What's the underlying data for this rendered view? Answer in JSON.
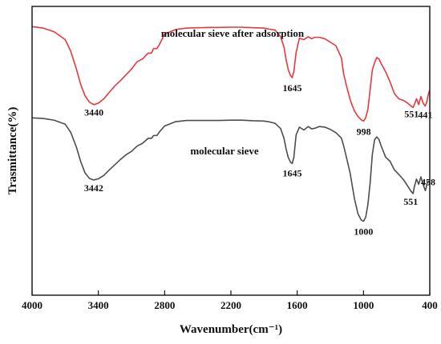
{
  "chart_data": {
    "type": "line",
    "xlabel": "Wavenumber(cm⁻¹)",
    "ylabel": "Trasmittance(%)",
    "xlim": [
      4000,
      400
    ],
    "x_reversed": true,
    "x_ticks": [
      4000,
      3400,
      2800,
      2200,
      1600,
      1000,
      400
    ],
    "y_ticks_shown": false,
    "grid": false,
    "legend": "none",
    "series": [
      {
        "name": "molecular sieve after adsorption",
        "color": "#e8383d",
        "x": [
          4000,
          3900,
          3800,
          3700,
          3650,
          3600,
          3560,
          3520,
          3480,
          3440,
          3400,
          3350,
          3300,
          3250,
          3200,
          3150,
          3100,
          3050,
          3000,
          2950,
          2920,
          2900,
          2870,
          2850,
          2800,
          2700,
          2600,
          2500,
          2400,
          2300,
          2200,
          2100,
          2000,
          1900,
          1850,
          1800,
          1750,
          1720,
          1700,
          1680,
          1660,
          1645,
          1630,
          1610,
          1580,
          1540,
          1500,
          1470,
          1440,
          1400,
          1350,
          1300,
          1250,
          1200,
          1180,
          1150,
          1120,
          1100,
          1080,
          1050,
          1020,
          998,
          980,
          960,
          940,
          920,
          900,
          880,
          860,
          840,
          800,
          760,
          720,
          680,
          640,
          600,
          570,
          551,
          540,
          520,
          500,
          480,
          460,
          441,
          430,
          410,
          400
        ],
        "y": [
          93.0,
          92.5,
          91.2,
          88.5,
          84.5,
          78.5,
          73.0,
          69.0,
          66.8,
          66.0,
          66.5,
          68.0,
          70.3,
          72.5,
          74.3,
          76.3,
          78.3,
          80.8,
          81.8,
          83.8,
          83.8,
          85.4,
          85.4,
          86.6,
          90.4,
          92.0,
          92.5,
          92.6,
          92.7,
          92.7,
          92.8,
          92.8,
          92.6,
          92.5,
          92.1,
          91.8,
          89.5,
          86.0,
          81.5,
          78.0,
          76.0,
          75.3,
          77.5,
          84.0,
          89.0,
          88.5,
          89.5,
          88.8,
          89.3,
          89.3,
          88.8,
          87.6,
          86.4,
          82.2,
          76.7,
          71.9,
          67.7,
          65.5,
          63.7,
          61.9,
          60.7,
          60.3,
          61.5,
          64.4,
          71.1,
          78.0,
          80.5,
          82.3,
          81.8,
          80.2,
          77.4,
          73.9,
          69.8,
          68.0,
          67.5,
          66.5,
          65.5,
          65.0,
          66.0,
          68.0,
          66.0,
          68.8,
          66.5,
          65.5,
          66.5,
          70.0,
          71.0
        ]
      },
      {
        "name": "molecular sieve",
        "color": "#4d4d4d",
        "x": [
          4000,
          3900,
          3800,
          3700,
          3650,
          3600,
          3560,
          3520,
          3480,
          3442,
          3400,
          3350,
          3300,
          3250,
          3200,
          3150,
          3100,
          3050,
          3000,
          2950,
          2920,
          2900,
          2870,
          2850,
          2800,
          2700,
          2600,
          2500,
          2400,
          2300,
          2200,
          2100,
          2000,
          1900,
          1850,
          1800,
          1750,
          1720,
          1700,
          1680,
          1660,
          1645,
          1630,
          1610,
          1580,
          1540,
          1500,
          1470,
          1440,
          1400,
          1350,
          1300,
          1250,
          1200,
          1180,
          1150,
          1120,
          1100,
          1080,
          1050,
          1020,
          1000,
          980,
          960,
          940,
          920,
          900,
          880,
          860,
          840,
          800,
          760,
          720,
          680,
          640,
          600,
          570,
          551,
          540,
          520,
          500,
          480,
          470,
          458,
          440,
          420,
          400
        ],
        "y": [
          61.4,
          61.2,
          60.6,
          59.2,
          56.4,
          51.4,
          46.3,
          42.3,
          40.4,
          39.9,
          40.3,
          41.5,
          43.4,
          45.2,
          47.0,
          48.6,
          49.8,
          51.6,
          52.6,
          54.3,
          54.3,
          55.3,
          55.3,
          56.4,
          58.6,
          60.1,
          60.5,
          60.5,
          60.5,
          60.5,
          60.6,
          60.6,
          60.4,
          60.3,
          60.0,
          59.5,
          57.7,
          54.4,
          50.5,
          47.6,
          46.0,
          45.6,
          47.8,
          55.5,
          58.2,
          57.2,
          58.4,
          57.6,
          57.8,
          58.4,
          58.2,
          57.4,
          56.3,
          54.4,
          51.8,
          47.0,
          42.1,
          37.5,
          33.1,
          28.2,
          26.0,
          25.6,
          27.0,
          31.4,
          38.8,
          48.7,
          53.8,
          54.8,
          53.9,
          51.7,
          47.8,
          46.4,
          43.4,
          41.8,
          40.1,
          37.8,
          36.0,
          35.2,
          37.5,
          40.2,
          38.4,
          41.0,
          39.6,
          38.1,
          36.2,
          39.2,
          39.5
        ]
      }
    ],
    "series_labels": [
      "molecular sieve after adsorption",
      "molecular sieve"
    ],
    "annotations": [
      {
        "text": "3440",
        "x": 3440,
        "series": 0
      },
      {
        "text": "1645",
        "x": 1645,
        "series": 0
      },
      {
        "text": "998",
        "x": 998,
        "series": 0
      },
      {
        "text": "551",
        "x": 551,
        "series": 0
      },
      {
        "text": "441",
        "x": 441,
        "series": 0
      },
      {
        "text": "3442",
        "x": 3442,
        "series": 1
      },
      {
        "text": "1645",
        "x": 1645,
        "series": 1
      },
      {
        "text": "1000",
        "x": 1000,
        "series": 1
      },
      {
        "text": "551",
        "x": 551,
        "series": 1
      },
      {
        "text": "458",
        "x": 458,
        "series": 1
      }
    ]
  }
}
